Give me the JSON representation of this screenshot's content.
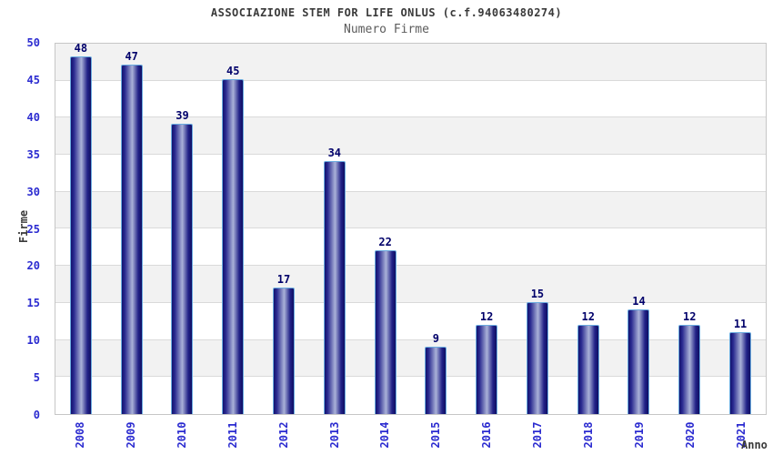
{
  "chart_data": {
    "type": "bar",
    "title": "ASSOCIAZIONE STEM FOR LIFE ONLUS (c.f.94063480274)",
    "subtitle": "Numero Firme",
    "xlabel": "Anno",
    "ylabel": "Firme",
    "categories": [
      "2008",
      "2009",
      "2010",
      "2011",
      "2012",
      "2013",
      "2014",
      "2015",
      "2016",
      "2017",
      "2018",
      "2019",
      "2020",
      "2021"
    ],
    "values": [
      48,
      47,
      39,
      45,
      17,
      34,
      22,
      9,
      12,
      15,
      12,
      14,
      12,
      11
    ],
    "ylim": [
      0,
      50
    ],
    "ytick_step": 5,
    "yticks": [
      0,
      5,
      10,
      15,
      20,
      25,
      30,
      35,
      40,
      45,
      50
    ],
    "legend": "none",
    "grid": "horizontal-bands-alternating",
    "bar_value_labels": true,
    "colors": {
      "tick_blue": "#2b2bd0",
      "value_navy": "#00006a",
      "title_gray": "#3a3a3a",
      "subtitle_gray": "#5c5c5c",
      "band_gray": "#f2f2f2",
      "band_white": "#ffffff",
      "grid_line": "#dadada",
      "plot_border": "#c6c6c6",
      "bar_border": "#6aabdf",
      "bar_gradient": [
        "#12126e",
        "#2a2a90",
        "#aab2d8",
        "#222288",
        "#0e0e62"
      ]
    }
  }
}
